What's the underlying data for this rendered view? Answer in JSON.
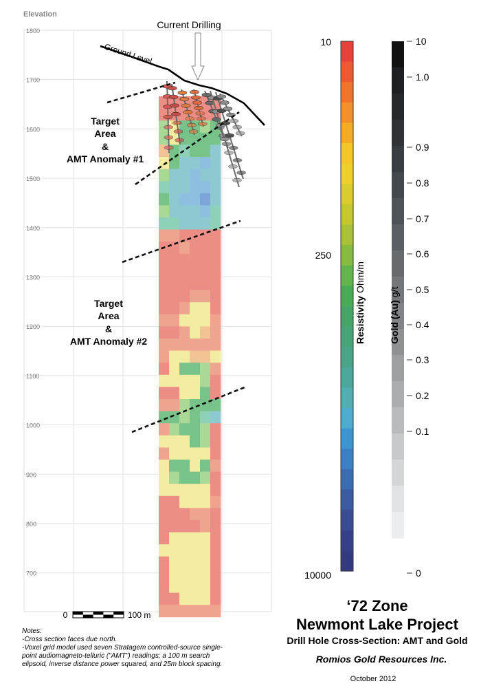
{
  "elevation_axis": {
    "label": "Elevation",
    "ticks": [
      "1800",
      "1700",
      "1600",
      "1500",
      "1400",
      "1300",
      "1200",
      "1100",
      "1000",
      "900",
      "800",
      "700"
    ]
  },
  "annotations": {
    "current_drilling": "Current Drilling",
    "ground_level": "Ground Level",
    "target1": [
      "Target",
      "Area",
      "&",
      "AMT Anomaly #1"
    ],
    "target2": [
      "Target",
      "Area",
      "&",
      "AMT Anomaly #2"
    ]
  },
  "scale_bar": {
    "start": "0",
    "end": "100 m"
  },
  "resistivity_legend": {
    "label_bold": "Resistivity",
    "label_unit": "Ohm/m",
    "ticks": [
      "10",
      "250",
      "10000"
    ],
    "colors": [
      "#e8403a",
      "#ec5a34",
      "#ee7530",
      "#f1902c",
      "#f4ab28",
      "#f6c626",
      "#eed028",
      "#d9cc2c",
      "#c4c731",
      "#a7c13a",
      "#86bb42",
      "#62b54a",
      "#4aab56",
      "#46a566",
      "#48a377",
      "#4aa488",
      "#4ea79b",
      "#52aeb1",
      "#4fabcf",
      "#3f95cf",
      "#3a80c2",
      "#3b6db3",
      "#3a5aa2",
      "#384b93",
      "#36408a",
      "#343a82"
    ]
  },
  "gold_legend": {
    "label_bold": "Gold (Au)",
    "label_unit": "g/t",
    "ticks": [
      "10",
      "1.0",
      "0.9",
      "0.8",
      "0.7",
      "0.6",
      "0.5",
      "0.4",
      "0.3",
      "0.2",
      "0.1",
      "0"
    ],
    "colors": [
      "#111111",
      "#1d1f22",
      "#26292c",
      "#2f3336",
      "#383d41",
      "#43484c",
      "#4e5357",
      "#5a5f63",
      "#676b6e",
      "#747779",
      "#818386",
      "#8f9193",
      "#9d9fa1",
      "#abadaf",
      "#b9bbbd",
      "#c7c9cb",
      "#d4d6d8",
      "#e1e3e5",
      "#ecedee"
    ]
  },
  "title_block": {
    "zone": "‘72 Zone",
    "project": "Newmont Lake Project",
    "subtitle": "Drill Hole Cross-Section: AMT and Gold",
    "company": "Romios Gold Resources Inc.",
    "date": "October  2012"
  },
  "notes": [
    "Notes:",
    "-Cross section faces due north.",
    "-Voxel grid model used seven Stratagem controlled-source single-",
    "point audiomagneto-telluric  (\"AMT\") readings; a 100 m search",
    "elipsoid, inverse distance power squared, and 25m block spacing."
  ]
}
